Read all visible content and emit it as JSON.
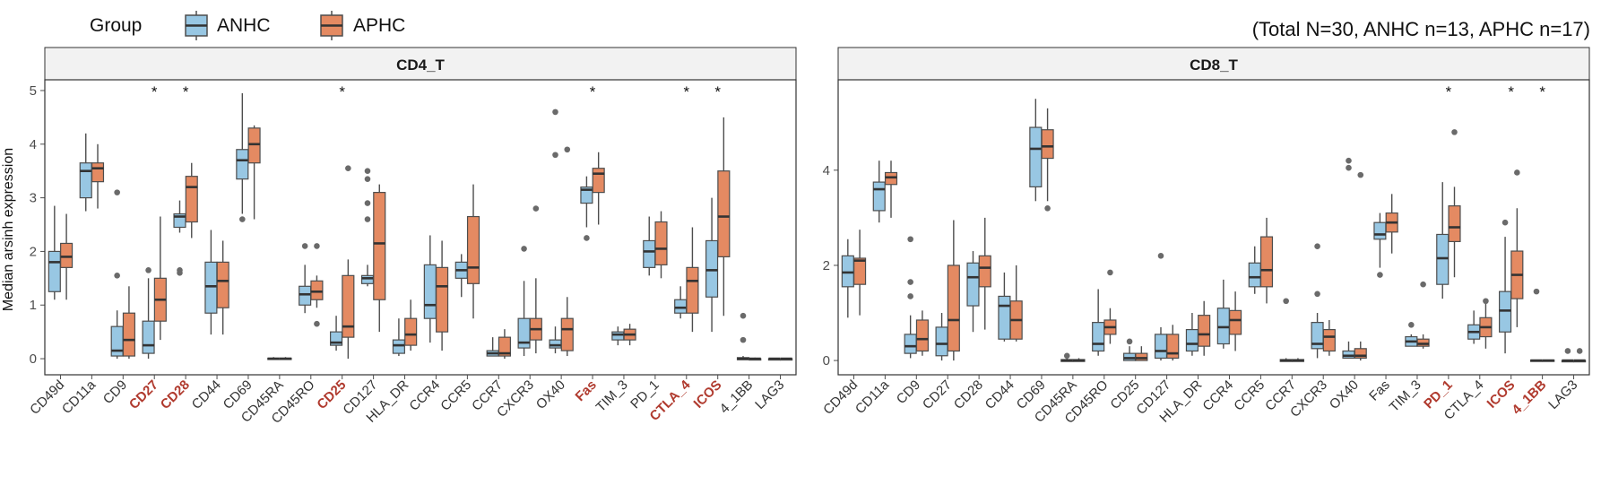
{
  "legend": {
    "title": "Group",
    "items": [
      {
        "label": "ANHC",
        "color": "#98c7e3"
      },
      {
        "label": "APHC",
        "color": "#e48a62"
      }
    ]
  },
  "note": "(Total N=30, ANHC n=13, APHC n=17)",
  "colors": {
    "anhc": "#98c7e3",
    "aphc": "#e48a62",
    "highlight": "#b03a2e",
    "strip": "#f2f2f2",
    "panel_border": "#333333",
    "whisker": "#4d4d4d",
    "outlier": "#6a6a6a"
  },
  "chart_data": [
    {
      "type": "boxplot",
      "title": "CD4_T",
      "ylabel": "Median arsinh expression",
      "ylim": [
        -0.3,
        5.2
      ],
      "yticks": [
        0,
        1,
        2,
        3,
        4,
        5
      ],
      "categories": [
        "CD49d",
        "CD11a",
        "CD9",
        "CD27",
        "CD28",
        "CD44",
        "CD69",
        "CD45RA",
        "CD45RO",
        "CD25",
        "CD127",
        "HLA_DR",
        "CCR4",
        "CCR5",
        "CCR7",
        "CXCR3",
        "OX40",
        "Fas",
        "TIM_3",
        "PD_1",
        "CTLA_4",
        "ICOS",
        "4_1BB",
        "LAG3"
      ],
      "highlighted": [
        "CD27",
        "CD28",
        "CD25",
        "Fas",
        "CTLA_4",
        "ICOS"
      ],
      "significant": [
        "CD27",
        "CD28",
        "CD25",
        "Fas",
        "CTLA_4",
        "ICOS"
      ],
      "series": [
        {
          "name": "ANHC",
          "boxes": [
            [
              1.1,
              1.25,
              1.8,
              2.0,
              2.85
            ],
            [
              2.75,
              3.0,
              3.5,
              3.65,
              4.2
            ],
            [
              0.0,
              0.05,
              0.15,
              0.6,
              0.9
            ],
            [
              0.0,
              0.1,
              0.25,
              0.7,
              1.5
            ],
            [
              2.35,
              2.45,
              2.65,
              2.7,
              2.95
            ],
            [
              0.45,
              0.85,
              1.35,
              1.8,
              2.4
            ],
            [
              2.7,
              3.35,
              3.7,
              3.9,
              4.95
            ],
            [
              -0.02,
              -0.01,
              0.0,
              0.01,
              0.03
            ],
            [
              0.85,
              1.0,
              1.2,
              1.35,
              1.75
            ],
            [
              0.15,
              0.25,
              0.3,
              0.5,
              0.8
            ],
            [
              1.35,
              1.4,
              1.5,
              1.55,
              1.75
            ],
            [
              0.05,
              0.1,
              0.25,
              0.35,
              0.75
            ],
            [
              0.3,
              0.75,
              1.0,
              1.75,
              2.3
            ],
            [
              1.15,
              1.5,
              1.65,
              1.8,
              1.95
            ],
            [
              0.05,
              0.05,
              0.1,
              0.15,
              0.4
            ],
            [
              0.05,
              0.2,
              0.3,
              0.75,
              1.45
            ],
            [
              0.1,
              0.2,
              0.25,
              0.35,
              0.6
            ],
            [
              2.45,
              2.9,
              3.15,
              3.2,
              3.4
            ],
            [
              0.25,
              0.35,
              0.45,
              0.5,
              0.6
            ],
            [
              1.55,
              1.7,
              2.0,
              2.2,
              2.65
            ],
            [
              0.75,
              0.85,
              0.95,
              1.1,
              1.35
            ],
            [
              0.5,
              1.15,
              1.65,
              2.2,
              3.0
            ],
            [
              -0.02,
              -0.02,
              0.0,
              0.02,
              0.05
            ],
            [
              -0.01,
              -0.01,
              0.0,
              0.0,
              0.01
            ]
          ],
          "outliers": [
            [],
            [],
            [
              1.55,
              3.1
            ],
            [
              1.65
            ],
            [
              1.6,
              1.65
            ],
            [],
            [
              2.6
            ],
            [],
            [
              2.1
            ],
            [],
            [
              3.35,
              3.5,
              2.9,
              2.6
            ],
            [],
            [],
            [],
            [],
            [
              2.05
            ],
            [
              3.8,
              4.6
            ],
            [
              2.25
            ],
            [],
            [],
            [],
            [],
            [
              0.35,
              0.8
            ],
            []
          ]
        },
        {
          "name": "APHC",
          "boxes": [
            [
              1.1,
              1.7,
              1.9,
              2.15,
              2.7
            ],
            [
              2.8,
              3.3,
              3.55,
              3.65,
              4.0
            ],
            [
              0.0,
              0.05,
              0.35,
              0.85,
              1.35
            ],
            [
              0.35,
              0.7,
              1.1,
              1.5,
              2.65
            ],
            [
              2.25,
              2.55,
              3.2,
              3.4,
              3.65
            ],
            [
              0.45,
              0.95,
              1.45,
              1.8,
              2.2
            ],
            [
              2.6,
              3.65,
              4.0,
              4.3,
              4.35
            ],
            [
              -0.02,
              -0.01,
              0.0,
              0.01,
              0.03
            ],
            [
              0.95,
              1.1,
              1.25,
              1.45,
              1.55
            ],
            [
              0.0,
              0.4,
              0.6,
              1.55,
              1.85
            ],
            [
              0.5,
              1.1,
              2.15,
              3.1,
              3.25
            ],
            [
              0.15,
              0.25,
              0.45,
              0.75,
              1.1
            ],
            [
              0.15,
              0.5,
              1.35,
              1.7,
              2.2
            ],
            [
              0.75,
              1.4,
              1.7,
              2.65,
              3.25
            ],
            [
              0.0,
              0.05,
              0.1,
              0.4,
              0.55
            ],
            [
              0.1,
              0.35,
              0.55,
              0.75,
              1.5
            ],
            [
              0.05,
              0.15,
              0.55,
              0.75,
              1.15
            ],
            [
              2.5,
              3.1,
              3.45,
              3.55,
              3.85
            ],
            [
              0.25,
              0.35,
              0.45,
              0.55,
              0.65
            ],
            [
              1.5,
              1.75,
              2.05,
              2.55,
              2.75
            ],
            [
              0.5,
              0.85,
              1.45,
              1.7,
              2.45
            ],
            [
              0.8,
              1.9,
              2.65,
              3.5,
              4.5
            ],
            [
              0.0,
              0.0,
              0.0,
              0.0,
              0.02
            ],
            [
              -0.01,
              -0.01,
              0.0,
              0.0,
              0.01
            ]
          ],
          "outliers": [
            [],
            [],
            [],
            [],
            [],
            [],
            [],
            [],
            [
              2.1,
              0.65
            ],
            [
              3.55
            ],
            [],
            [],
            [],
            [],
            [],
            [
              2.8
            ],
            [
              3.9
            ],
            [],
            [],
            [],
            [],
            [],
            [],
            []
          ]
        }
      ]
    },
    {
      "type": "boxplot",
      "title": "CD8_T",
      "ylabel": "",
      "ylim": [
        -0.3,
        5.9
      ],
      "yticks": [
        0,
        2,
        4
      ],
      "categories": [
        "CD49d",
        "CD11a",
        "CD9",
        "CD27",
        "CD28",
        "CD44",
        "CD69",
        "CD45RA",
        "CD45RO",
        "CD25",
        "CD127",
        "HLA_DR",
        "CCR4",
        "CCR5",
        "CCR7",
        "CXCR3",
        "OX40",
        "Fas",
        "TIM_3",
        "PD_1",
        "CTLA_4",
        "ICOS",
        "4_1BB",
        "LAG3"
      ],
      "highlighted": [
        "PD_1",
        "ICOS",
        "4_1BB"
      ],
      "significant": [
        "PD_1",
        "ICOS",
        "4_1BB"
      ],
      "series": [
        {
          "name": "ANHC",
          "boxes": [
            [
              0.9,
              1.55,
              1.85,
              2.2,
              2.55
            ],
            [
              2.9,
              3.15,
              3.6,
              3.75,
              4.2
            ],
            [
              0.05,
              0.15,
              0.3,
              0.55,
              0.95
            ],
            [
              0.0,
              0.1,
              0.35,
              0.7,
              1.0
            ],
            [
              0.6,
              1.15,
              1.75,
              2.05,
              2.3
            ],
            [
              0.4,
              0.45,
              1.15,
              1.35,
              1.85
            ],
            [
              3.35,
              3.65,
              4.45,
              4.9,
              5.5
            ],
            [
              -0.02,
              -0.02,
              0.0,
              0.02,
              0.05
            ],
            [
              0.1,
              0.2,
              0.35,
              0.8,
              1.5
            ],
            [
              0.0,
              0.0,
              0.05,
              0.15,
              0.3
            ],
            [
              0.0,
              0.05,
              0.2,
              0.55,
              0.7
            ],
            [
              0.1,
              0.2,
              0.35,
              0.65,
              1.0
            ],
            [
              0.25,
              0.35,
              0.7,
              1.1,
              1.7
            ],
            [
              1.4,
              1.55,
              1.75,
              2.05,
              2.4
            ],
            [
              -0.02,
              -0.02,
              0.0,
              0.02,
              0.05
            ],
            [
              0.05,
              0.25,
              0.35,
              0.8,
              1.0
            ],
            [
              0.05,
              0.05,
              0.1,
              0.2,
              0.4
            ],
            [
              1.95,
              2.55,
              2.65,
              2.9,
              3.1
            ],
            [
              0.3,
              0.3,
              0.4,
              0.5,
              0.55
            ],
            [
              1.3,
              1.6,
              2.15,
              2.65,
              3.75
            ],
            [
              0.35,
              0.45,
              0.6,
              0.75,
              1.05
            ],
            [
              0.15,
              0.6,
              1.05,
              1.45,
              2.6
            ],
            [
              -0.02,
              -0.02,
              0.0,
              0.01,
              0.02
            ],
            [
              -0.01,
              -0.01,
              0.0,
              0.0,
              0.01
            ]
          ],
          "outliers": [
            [],
            [],
            [
              1.65,
              1.35,
              2.55
            ],
            [],
            [],
            [],
            [],
            [
              0.1
            ],
            [],
            [
              0.4
            ],
            [
              2.2
            ],
            [],
            [],
            [],
            [
              1.25
            ],
            [
              2.4,
              1.4
            ],
            [
              4.2,
              4.05
            ],
            [
              1.8
            ],
            [
              0.75
            ],
            [],
            [],
            [
              2.9
            ],
            [
              1.45
            ],
            [
              0.2
            ]
          ]
        },
        {
          "name": "APHC",
          "boxes": [
            [
              0.95,
              1.6,
              2.1,
              2.15,
              2.75
            ],
            [
              3.0,
              3.7,
              3.85,
              3.95,
              4.2
            ],
            [
              0.1,
              0.2,
              0.45,
              0.85,
              1.05
            ],
            [
              0.0,
              0.2,
              0.85,
              2.0,
              2.95
            ],
            [
              0.65,
              1.55,
              1.95,
              2.2,
              3.0
            ],
            [
              0.4,
              0.45,
              0.85,
              1.25,
              2.0
            ],
            [
              3.35,
              4.25,
              4.5,
              4.85,
              5.3
            ],
            [
              -0.02,
              -0.02,
              0.0,
              0.02,
              0.05
            ],
            [
              0.35,
              0.55,
              0.7,
              0.85,
              1.1
            ],
            [
              0.0,
              0.0,
              0.05,
              0.15,
              0.3
            ],
            [
              0.0,
              0.05,
              0.15,
              0.55,
              0.75
            ],
            [
              0.1,
              0.3,
              0.55,
              0.95,
              1.25
            ],
            [
              0.2,
              0.55,
              0.85,
              1.05,
              1.45
            ],
            [
              1.2,
              1.55,
              1.9,
              2.6,
              3.0
            ],
            [
              -0.02,
              -0.02,
              0.0,
              0.02,
              0.05
            ],
            [
              0.1,
              0.2,
              0.5,
              0.65,
              0.85
            ],
            [
              0.0,
              0.05,
              0.1,
              0.25,
              0.4
            ],
            [
              2.25,
              2.7,
              2.9,
              3.1,
              3.5
            ],
            [
              0.25,
              0.3,
              0.35,
              0.45,
              0.55
            ],
            [
              1.75,
              2.5,
              2.8,
              3.25,
              3.65
            ],
            [
              0.25,
              0.5,
              0.7,
              0.9,
              1.25
            ],
            [
              0.7,
              1.3,
              1.8,
              2.3,
              3.2
            ],
            [
              -0.02,
              -0.02,
              0.0,
              0.01,
              0.02
            ],
            [
              -0.01,
              -0.01,
              0.0,
              0.0,
              0.01
            ]
          ],
          "outliers": [
            [],
            [],
            [],
            [],
            [],
            [],
            [
              3.2
            ],
            [],
            [
              1.85
            ],
            [],
            [],
            [],
            [],
            [],
            [],
            [],
            [
              3.9
            ],
            [],
            [
              1.6
            ],
            [
              4.8
            ],
            [
              1.25
            ],
            [
              3.95
            ],
            [],
            [
              0.2
            ]
          ]
        }
      ]
    }
  ]
}
